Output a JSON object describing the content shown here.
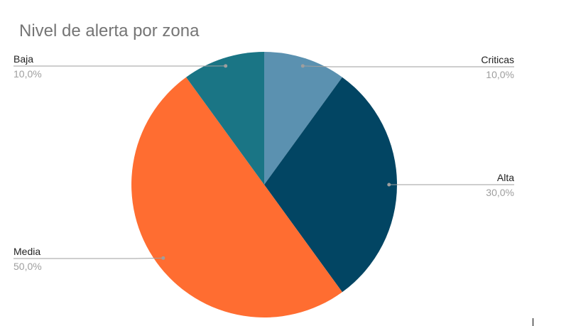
{
  "chart_data": {
    "type": "pie",
    "title": "Nivel de alerta por zona",
    "start_angle_deg": 0,
    "direction": "clockwise",
    "slices": [
      {
        "label": "Criticas",
        "value": 10,
        "value_label": "10,0%",
        "color": "#5b91b0"
      },
      {
        "label": "Alta",
        "value": 30,
        "value_label": "30,0%",
        "color": "#024563"
      },
      {
        "label": "Media",
        "value": 50,
        "value_label": "50,0%",
        "color": "#ff6d31"
      },
      {
        "label": "Baja",
        "value": 10,
        "value_label": "10,0%",
        "color": "#1a7585"
      }
    ]
  }
}
